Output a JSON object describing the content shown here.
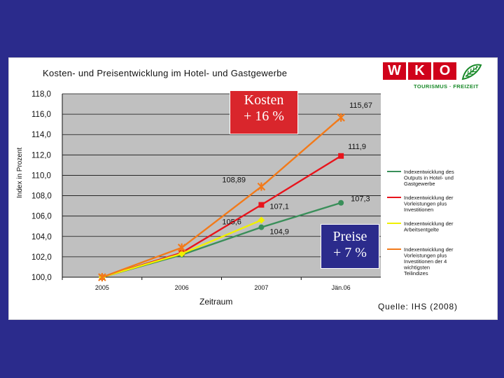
{
  "chart_data": {
    "type": "line",
    "title": "Kosten- und Preisentwicklung im Hotel- und Gastgewerbe",
    "xlabel": "Zeitraum",
    "ylabel": "Index in Prozent",
    "categories": [
      "2005",
      "2006",
      "2007",
      "Jän.06"
    ],
    "ylim": [
      100,
      118
    ],
    "yticks": [
      "100,0",
      "102,0",
      "104,0",
      "106,0",
      "108,0",
      "110,0",
      "112,0",
      "114,0",
      "116,0",
      "118,0"
    ],
    "grid": true,
    "legend_position": "right",
    "series": [
      {
        "name": "Indexentwicklung des Outputs in Hotel- und Gastgewerbe",
        "color": "#3a8f5a",
        "marker": "circle",
        "values": [
          100,
          102.2,
          104.9,
          107.3
        ],
        "labels": [
          null,
          null,
          "104,9",
          "107,3"
        ]
      },
      {
        "name": "Indexentwicklung der Vorleistungen plus Investitionen",
        "color": "#e8141c",
        "marker": "square",
        "values": [
          100,
          102.4,
          107.1,
          111.9
        ],
        "labels": [
          null,
          null,
          "107,1",
          "111,9"
        ]
      },
      {
        "name": "Indexentwicklung der Arbeitsentgelte",
        "color": "#f0f000",
        "marker": "diamond",
        "values": [
          100,
          102.3,
          105.6,
          null
        ],
        "labels": [
          null,
          null,
          "105,6",
          null
        ]
      },
      {
        "name": "Indexentwicklung der Vorleistungen plus Investitionen der 4 wichtigsten Teilindizes",
        "color": "#f27a1a",
        "marker": "asterisk",
        "values": [
          100,
          102.9,
          108.89,
          115.67
        ],
        "labels": [
          null,
          null,
          "108,89",
          "115,67"
        ]
      }
    ]
  },
  "callouts": {
    "kosten": "Kosten\n+ 16 %",
    "preise": "Preise\n+ 7 %"
  },
  "source": "Quelle: IHS (2008)",
  "logo": {
    "letters": [
      "W",
      "K",
      "O"
    ],
    "subtitle": "TOURISMUS · FREIZEIT",
    "brand_color": "#d0021b",
    "sub_color": "#1a8a2a",
    "icon": "leaf-icon"
  },
  "colors": {
    "background": "#2b2b8c",
    "plot_area": "#c0c0c0"
  }
}
